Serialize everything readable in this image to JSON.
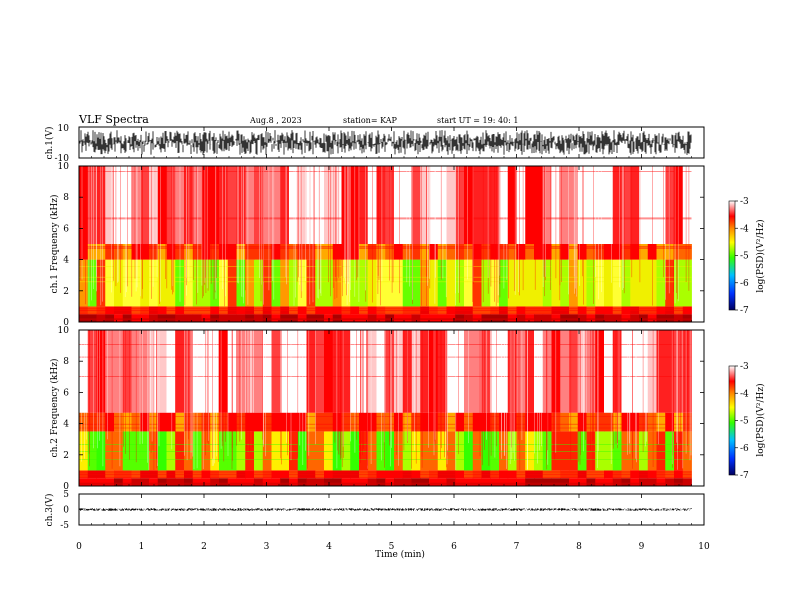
{
  "header": {
    "title": "VLF Spectra",
    "date": "Aug.8 , 2023",
    "station": "station= KAP",
    "start_ut": "start UT = 19: 40: 1"
  },
  "chart_data": [
    {
      "type": "line",
      "name": "waveform-ch1",
      "ylabel": "ch.1(V)",
      "ylim": [
        -10,
        10
      ],
      "y_ticks": [
        "10",
        "-10"
      ],
      "xlim": [
        0,
        10
      ],
      "data_extent_min": 9.8,
      "amplitude_band": [
        -8,
        8
      ]
    },
    {
      "type": "heatmap",
      "name": "spectrogram-ch1",
      "ylabel": "ch.1 Frequency (kHz)",
      "ylim": [
        0,
        10
      ],
      "y_ticks": [
        "0",
        "2",
        "4",
        "6",
        "8",
        "10"
      ],
      "xlim": [
        0,
        10
      ],
      "data_extent_min": 9.8,
      "colorbar": {
        "label": "log(PSD)(V²/Hz)",
        "ticks": [
          "-3",
          "-4",
          "-5",
          "-6",
          "-7"
        ],
        "range": [
          -7,
          -3
        ]
      },
      "bands": [
        {
          "f_range": [
            0,
            0.5
          ],
          "level": "red-dark"
        },
        {
          "f_range": [
            0.5,
            1.0
          ],
          "level": "red"
        },
        {
          "f_range": [
            1.0,
            4.0
          ],
          "level": "yellow-green"
        },
        {
          "f_range": [
            4.0,
            5.0
          ],
          "level": "red-orange"
        },
        {
          "f_range": [
            5.0,
            10.0
          ],
          "level": "sparse-red"
        }
      ]
    },
    {
      "type": "heatmap",
      "name": "spectrogram-ch2",
      "ylabel": "ch.2 Frequency (kHz)",
      "ylim": [
        0,
        10
      ],
      "y_ticks": [
        "0",
        "2",
        "4",
        "6",
        "8",
        "10"
      ],
      "xlim": [
        0,
        10
      ],
      "data_extent_min": 9.8,
      "colorbar": {
        "label": "log(PSD)(V²/Hz)",
        "ticks": [
          "-3",
          "-4",
          "-5",
          "-6",
          "-7"
        ],
        "range": [
          -7,
          -3
        ]
      },
      "bands": [
        {
          "f_range": [
            0,
            0.5
          ],
          "level": "red-dark"
        },
        {
          "f_range": [
            0.5,
            1.0
          ],
          "level": "red"
        },
        {
          "f_range": [
            1.0,
            3.5
          ],
          "level": "green"
        },
        {
          "f_range": [
            3.5,
            4.7
          ],
          "level": "red-orange"
        },
        {
          "f_range": [
            4.7,
            10.0
          ],
          "level": "sparse-red"
        }
      ]
    },
    {
      "type": "line",
      "name": "waveform-ch3",
      "ylabel": "ch.3(V)",
      "ylim": [
        -5,
        5
      ],
      "y_ticks": [
        "5",
        "0",
        "-5"
      ],
      "xlim": [
        0,
        10
      ],
      "data_extent_min": 9.8,
      "amplitude_band": [
        -0.4,
        0.4
      ],
      "xlabel": "Time (min)",
      "x_ticks": [
        "0",
        "1",
        "2",
        "3",
        "4",
        "5",
        "6",
        "7",
        "8",
        "9",
        "10"
      ]
    }
  ],
  "colors": {
    "axis": "#000000",
    "red": "#ff2020",
    "orange": "#ff9900",
    "yellow": "#f0f000",
    "green": "#33ff00",
    "blue": "#0030ff",
    "navy": "#000070"
  }
}
